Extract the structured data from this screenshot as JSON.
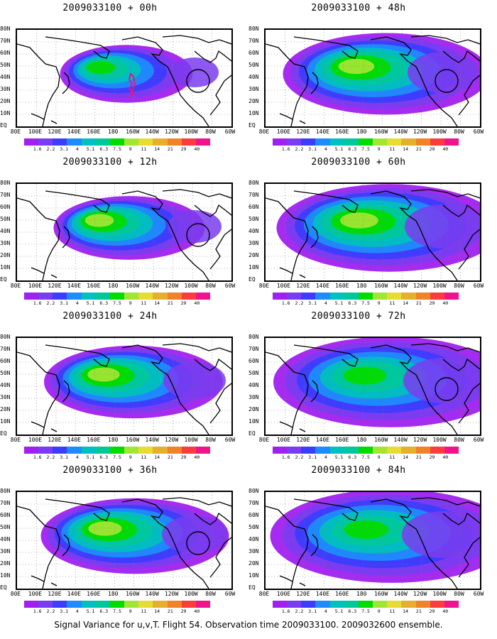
{
  "panels": [
    {
      "title": "2009033100 + 00h",
      "intensity": 0.55,
      "spread": 0.35,
      "circle": true,
      "track": true
    },
    {
      "title": "2009033100 + 48h",
      "intensity": 0.75,
      "spread": 0.75,
      "circle": true,
      "track": false
    },
    {
      "title": "2009033100 + 12h",
      "intensity": 0.7,
      "spread": 0.45,
      "circle": true,
      "track": false
    },
    {
      "title": "2009033100 + 60h",
      "intensity": 0.7,
      "spread": 0.85,
      "circle": false,
      "track": false
    },
    {
      "title": "2009033100 + 24h",
      "intensity": 0.7,
      "spread": 0.6,
      "circle": false,
      "track": false
    },
    {
      "title": "2009033100 + 72h",
      "intensity": 0.65,
      "spread": 0.9,
      "circle": true,
      "track": false
    },
    {
      "title": "2009033100 + 36h",
      "intensity": 0.7,
      "spread": 0.65,
      "circle": true,
      "track": false
    },
    {
      "title": "2009033100 + 84h",
      "intensity": 0.65,
      "spread": 0.95,
      "circle": false,
      "track": false
    }
  ],
  "lat_labels": [
    "80N",
    "70N",
    "60N",
    "50N",
    "40N",
    "30N",
    "20N",
    "10N",
    "EQ"
  ],
  "lon_labels": [
    "80E",
    "100E",
    "120E",
    "140E",
    "160E",
    "180",
    "160W",
    "140W",
    "120W",
    "100W",
    "80W",
    "60W"
  ],
  "colorbar": {
    "labels": [
      "1.6",
      "2.2",
      "3.1",
      "4",
      "5.1",
      "6.3",
      "7.5",
      "9",
      "11",
      "14",
      "21",
      "29",
      "40"
    ],
    "colors": [
      "#a020f0",
      "#7a3cf0",
      "#3c3cff",
      "#1e8cff",
      "#00c0c0",
      "#00c89c",
      "#00dc00",
      "#a0e632",
      "#e6dc32",
      "#e6af2d",
      "#f08228",
      "#fa3c3c",
      "#f0148c"
    ]
  },
  "footer": "Signal Variance for u,v,T. Flight 54. Observation time 2009033100. 2009032600 ensemble."
}
